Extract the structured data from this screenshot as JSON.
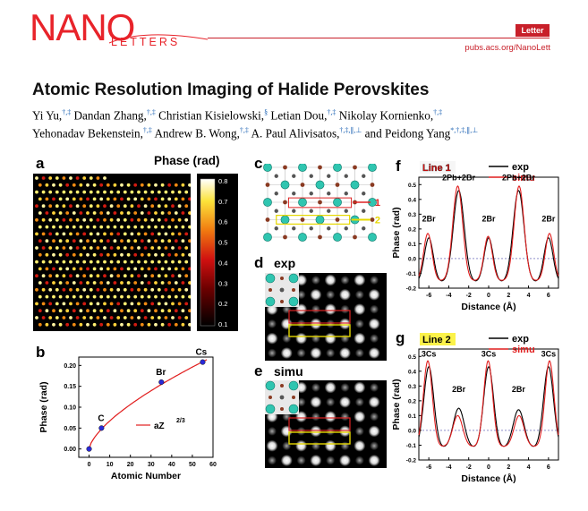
{
  "header": {
    "logo_main": "NANO",
    "logo_sub": "LETTERS",
    "badge": "Letter",
    "url": "pubs.acs.org/NanoLett"
  },
  "paper": {
    "title": "Atomic Resolution Imaging of Halide Perovskites",
    "authors_line1": [
      {
        "name": "Yi Yu,",
        "sup": "†,‡"
      },
      {
        "name": " Dandan Zhang,",
        "sup": "†,‡"
      },
      {
        "name": " Christian Kisielowski,",
        "sup": "§"
      },
      {
        "name": " Letian Dou,",
        "sup": "†,‡"
      },
      {
        "name": " Nikolay Kornienko,",
        "sup": "†,‡"
      }
    ],
    "authors_line2": [
      {
        "name": "Yehonadav Bekenstein,",
        "sup": "†,‡"
      },
      {
        "name": " Andrew B. Wong,",
        "sup": "†,‡"
      },
      {
        "name": " A. Paul Alivisatos,",
        "sup": "†,‡,∥,⊥"
      },
      {
        "name": " and Peidong Yang",
        "sup": "*,†,‡,∥,⊥"
      }
    ]
  },
  "figure": {
    "panel_labels": {
      "a": "a",
      "b": "b",
      "c": "c",
      "d": "d",
      "e": "e",
      "f": "f",
      "g": "g"
    },
    "panel_a": {
      "title": "Phase (rad)",
      "colorbar_ticks": [
        "0.8",
        "0.7",
        "0.6",
        "0.5",
        "0.4",
        "0.3",
        "0.2",
        "0.1"
      ]
    },
    "panel_c": {
      "marker1": "1",
      "marker2": "2"
    },
    "panel_d": {
      "label": "exp"
    },
    "panel_e": {
      "label": "simu"
    },
    "panel_f_annotations": [
      "2Pb+2Br",
      "2Pb+2Br",
      "2Br",
      "2Br",
      "2Br"
    ],
    "panel_g_annotations": [
      "3Cs",
      "3Cs",
      "3Cs",
      "2Br",
      "2Br"
    ]
  },
  "chart_data": [
    {
      "id": "b",
      "type": "scatter",
      "title": "",
      "xlabel": "Atomic Number",
      "ylabel": "Phase (rad)",
      "xlim": [
        -5,
        60
      ],
      "ylim": [
        -0.02,
        0.22
      ],
      "xticks": [
        0,
        10,
        20,
        30,
        40,
        50,
        60
      ],
      "yticks": [
        "0.00",
        "0.05",
        "0.10",
        "0.15",
        "0.20"
      ],
      "points": [
        {
          "label": "",
          "x": 0,
          "y": 0.0
        },
        {
          "label": "C",
          "x": 6,
          "y": 0.05
        },
        {
          "label": "Br",
          "x": 35,
          "y": 0.16
        },
        {
          "label": "Cs",
          "x": 55,
          "y": 0.208
        }
      ],
      "fit": {
        "name": "aZ",
        "exponent": "2/3",
        "a": 0.01444
      },
      "colors": {
        "points": "#2a2ad8",
        "fit": "#e11d1d"
      }
    },
    {
      "id": "f",
      "type": "line",
      "title": "Line 1",
      "xlabel": "Distance (Å)",
      "ylabel": "Phase (rad)",
      "xlim": [
        -7,
        7
      ],
      "ylim": [
        -0.2,
        0.55
      ],
      "xticks": [
        -6,
        -4,
        -2,
        0,
        2,
        4,
        6
      ],
      "yticks": [
        "-0.2",
        "-0.1",
        "0.0",
        "0.1",
        "0.2",
        "0.3",
        "0.4",
        "0.5"
      ],
      "series": [
        {
          "name": "exp",
          "color": "#000000",
          "peaks": [
            [
              -6,
              0.14,
              0.45
            ],
            [
              -3,
              0.46,
              0.55
            ],
            [
              0,
              0.14,
              0.45
            ],
            [
              3,
              0.46,
              0.55
            ],
            [
              6,
              0.14,
              0.45
            ]
          ],
          "baseline": -0.16
        },
        {
          "name": "simu",
          "color": "#e11d1d",
          "peaks": [
            [
              -6.1,
              0.17,
              0.42
            ],
            [
              -3.1,
              0.49,
              0.5
            ],
            [
              -0.05,
              0.15,
              0.42
            ],
            [
              3.05,
              0.49,
              0.5
            ],
            [
              6.1,
              0.17,
              0.42
            ]
          ],
          "baseline": -0.15
        }
      ]
    },
    {
      "id": "g",
      "type": "line",
      "title": "Line 2",
      "xlabel": "Distance (Å)",
      "ylabel": "Phase (rad)",
      "xlim": [
        -7,
        7
      ],
      "ylim": [
        -0.2,
        0.55
      ],
      "xticks": [
        -6,
        -4,
        -2,
        0,
        2,
        4,
        6
      ],
      "yticks": [
        "-0.2",
        "-0.1",
        "0.0",
        "0.1",
        "0.2",
        "0.3",
        "0.4",
        "0.5"
      ],
      "series": [
        {
          "name": "exp",
          "color": "#000000",
          "peaks": [
            [
              -6,
              0.43,
              0.5
            ],
            [
              -3,
              0.15,
              0.55
            ],
            [
              0,
              0.43,
              0.5
            ],
            [
              3,
              0.14,
              0.55
            ],
            [
              6,
              0.43,
              0.5
            ]
          ],
          "baseline": -0.12
        },
        {
          "name": "simu",
          "color": "#e11d1d",
          "peaks": [
            [
              -6.1,
              0.47,
              0.45
            ],
            [
              -3.1,
              0.1,
              0.5
            ],
            [
              -0.05,
              0.47,
              0.45
            ],
            [
              3.05,
              0.1,
              0.5
            ],
            [
              6.1,
              0.47,
              0.45
            ]
          ],
          "baseline": -0.11
        }
      ]
    }
  ]
}
